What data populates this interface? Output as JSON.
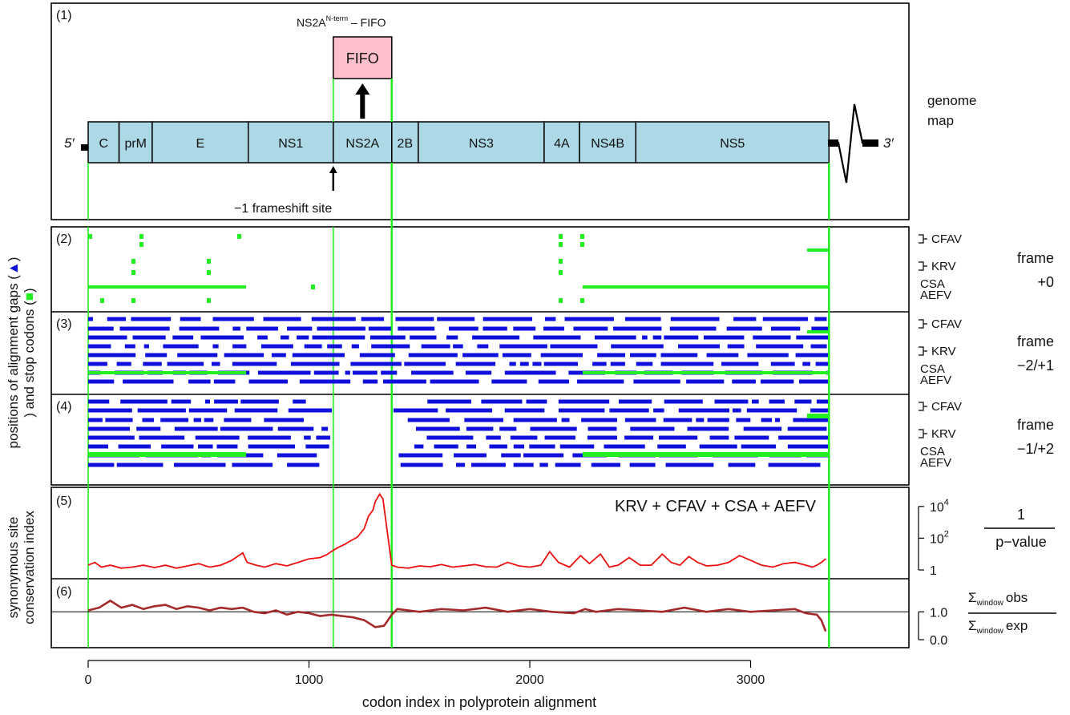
{
  "panels": {
    "p1": "(1)",
    "p2": "(2)",
    "p3": "(3)",
    "p4": "(4)",
    "p5": "(5)",
    "p6": "(6)"
  },
  "genome": {
    "five_prime": "5′",
    "three_prime": "3′",
    "map_label_line1": "genome",
    "map_label_line2": "map",
    "frameshift_label": "−1 frameshift site",
    "fifo_label": "FIFO",
    "fusion_label_main": "NS2A",
    "fusion_label_sup": "N-term",
    "fusion_label_tail": " – FIFO",
    "genes": [
      {
        "name": "C",
        "start": 0,
        "end": 140
      },
      {
        "name": "prM",
        "start": 140,
        "end": 290
      },
      {
        "name": "E",
        "start": 290,
        "end": 725
      },
      {
        "name": "NS1",
        "start": 725,
        "end": 1110
      },
      {
        "name": "NS2A",
        "start": 1110,
        "end": 1375
      },
      {
        "name": "2B",
        "start": 1375,
        "end": 1495
      },
      {
        "name": "NS3",
        "start": 1495,
        "end": 2065
      },
      {
        "name": "4A",
        "start": 2065,
        "end": 2225
      },
      {
        "name": "NS4B",
        "start": 2225,
        "end": 2480
      },
      {
        "name": "NS5",
        "start": 2480,
        "end": 3355
      }
    ],
    "frameshift_site": 1110,
    "fifo_end": 1375,
    "polyprotein_end": 3355
  },
  "side_labels": {
    "axis_text_left": "positions of alignment gaps (",
    "axis_text_mid": ") and stop codons (",
    "axis_text_right": ")",
    "conservation_line1": "synonymous site",
    "conservation_line2": "conservation index",
    "species": [
      "CFAV",
      "KRV",
      "CSA",
      "AEFV"
    ],
    "frames": [
      {
        "line1": "frame",
        "line2": "+0"
      },
      {
        "line1": "frame",
        "line2": "−2/+1"
      },
      {
        "line1": "frame",
        "line2": "−1/+2"
      }
    ],
    "ratio_numerator": "1",
    "ratio_denominator": "p−value",
    "sum_symbol": "Σ",
    "sum_sub": "window",
    "obs": "obs",
    "exp": "exp"
  },
  "colors": {
    "gene_box": "#add8e6",
    "fifo_box": "#ffc0cb",
    "gap_marker": "#22ee22",
    "stop_codon": "#1010dd",
    "conservation_line": "#ee1010",
    "ratio_line": "#a52a2a",
    "guide_line": "#22ee22"
  },
  "chart_data": [
    {
      "type": "line",
      "panel": "(5)",
      "annotation": "KRV + CFAV + CSA + AEFV",
      "xlabel": "codon index in polyprotein alignment",
      "xlim": [
        -150,
        3700
      ],
      "x_ticks": [
        0,
        1000,
        2000,
        3000
      ],
      "y_scale": "log",
      "ylim": [
        0.5,
        100000
      ],
      "y_ticks": [
        {
          "value": 1,
          "base": "1",
          "exp": ""
        },
        {
          "value": 100,
          "base": "10",
          "exp": "2"
        },
        {
          "value": 10000,
          "base": "10",
          "exp": "4"
        }
      ],
      "series": [
        {
          "x": [
            0,
            30,
            60,
            100,
            150,
            200,
            250,
            300,
            350,
            400,
            450,
            500,
            550,
            600,
            650,
            700,
            720,
            760,
            800,
            850,
            900,
            950,
            1000,
            1050,
            1080,
            1100,
            1130,
            1160,
            1190,
            1220,
            1250,
            1270,
            1290,
            1300,
            1320,
            1335,
            1350,
            1365,
            1375,
            1400,
            1450,
            1500,
            1550,
            1600,
            1650,
            1700,
            1750,
            1800,
            1850,
            1900,
            1950,
            2000,
            2050,
            2090,
            2130,
            2180,
            2230,
            2270,
            2320,
            2360,
            2400,
            2450,
            2500,
            2550,
            2600,
            2640,
            2680,
            2720,
            2760,
            2800,
            2850,
            2900,
            2950,
            3000,
            3050,
            3100,
            3150,
            3200,
            3250,
            3280,
            3300,
            3320,
            3340
          ],
          "y": [
            2,
            3,
            1.5,
            2,
            1.3,
            1.5,
            2,
            1.4,
            2,
            1.3,
            1.8,
            2.5,
            1.5,
            2,
            4,
            12,
            3,
            2,
            1.5,
            2.5,
            1.8,
            3,
            5,
            6,
            9,
            14,
            25,
            40,
            70,
            120,
            400,
            2500,
            6000,
            20000,
            60000,
            30000,
            800,
            20,
            2,
            1.5,
            1.3,
            1.8,
            1.6,
            2.2,
            1.5,
            1.8,
            2.2,
            1.6,
            1.5,
            3,
            1.8,
            1.5,
            2,
            14,
            3,
            1.5,
            8,
            2.5,
            10,
            1.5,
            2,
            6,
            2,
            2,
            10,
            3,
            2,
            7,
            3,
            1.8,
            2,
            3,
            8,
            4,
            2,
            1.5,
            2.5,
            3,
            2,
            1.5,
            2,
            3,
            5
          ]
        }
      ]
    },
    {
      "type": "line",
      "panel": "(6)",
      "xlim": [
        -150,
        3700
      ],
      "ylim": [
        -0.2,
        1.9
      ],
      "y_ticks": [
        {
          "value": 0,
          "label": "0.0"
        },
        {
          "value": 1,
          "label": "1.0"
        }
      ],
      "reference_line": 1.0,
      "series": [
        {
          "x": [
            0,
            50,
            100,
            150,
            200,
            250,
            300,
            350,
            400,
            450,
            500,
            550,
            600,
            650,
            700,
            750,
            800,
            850,
            900,
            950,
            1000,
            1050,
            1100,
            1150,
            1200,
            1250,
            1300,
            1340,
            1375,
            1400,
            1500,
            1600,
            1700,
            1800,
            1900,
            2000,
            2100,
            2200,
            2250,
            2300,
            2400,
            2500,
            2600,
            2700,
            2800,
            2900,
            3000,
            3100,
            3200,
            3250,
            3300,
            3320,
            3340
          ],
          "y": [
            1.05,
            1.15,
            1.4,
            1.15,
            1.25,
            1.1,
            1.2,
            1.25,
            1.1,
            1.2,
            1.15,
            1.05,
            1.15,
            1.1,
            1.15,
            1.0,
            0.95,
            1.05,
            0.9,
            1.0,
            0.95,
            0.85,
            0.9,
            0.85,
            0.8,
            0.7,
            0.45,
            0.5,
            0.9,
            1.1,
            1.0,
            1.1,
            1.05,
            1.15,
            1.0,
            1.1,
            1.0,
            0.95,
            1.1,
            1.0,
            1.1,
            1.05,
            1.0,
            1.15,
            1.0,
            1.1,
            1.0,
            1.05,
            1.1,
            0.95,
            0.9,
            0.7,
            0.3
          ]
        }
      ]
    }
  ]
}
